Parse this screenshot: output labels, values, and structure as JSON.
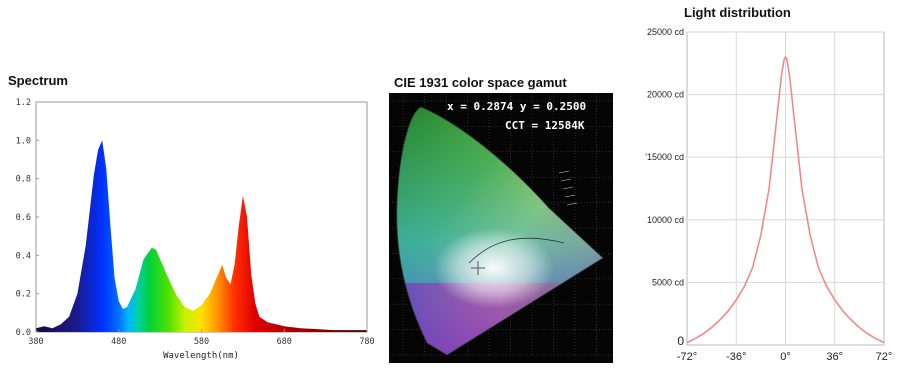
{
  "chart_data": [
    {
      "type": "area",
      "title": "Spectrum",
      "xlabel": "Wavelength(nm)",
      "ylabel": "",
      "xlim": [
        380,
        780
      ],
      "ylim": [
        0,
        1.2
      ],
      "xticks": [
        "380",
        "480",
        "580",
        "680",
        "780"
      ],
      "yticks": [
        "0.0",
        "0.2",
        "0.4",
        "0.6",
        "0.8",
        "1.0",
        "1.2"
      ],
      "series": [
        {
          "x": [
            380,
            390,
            400,
            410,
            420,
            430,
            440,
            450,
            455,
            460,
            465,
            470,
            475,
            480,
            485,
            490,
            500,
            510,
            520,
            525,
            530,
            540,
            550,
            560,
            570,
            580,
            590,
            600,
            605,
            610,
            615,
            620,
            625,
            630,
            635,
            640,
            645,
            650,
            660,
            670,
            680,
            700,
            720,
            740,
            760,
            780
          ],
          "values": [
            0.02,
            0.03,
            0.02,
            0.04,
            0.08,
            0.2,
            0.45,
            0.82,
            0.95,
            1.0,
            0.85,
            0.55,
            0.28,
            0.16,
            0.12,
            0.13,
            0.22,
            0.38,
            0.44,
            0.43,
            0.38,
            0.28,
            0.19,
            0.13,
            0.11,
            0.14,
            0.2,
            0.3,
            0.35,
            0.28,
            0.25,
            0.35,
            0.55,
            0.71,
            0.6,
            0.3,
            0.15,
            0.08,
            0.05,
            0.04,
            0.03,
            0.02,
            0.015,
            0.01,
            0.01,
            0.01
          ]
        }
      ],
      "grid": false,
      "legend": "none"
    },
    {
      "type": "scatter",
      "title": "CIE 1931 color space  gamut",
      "annotations": [
        "x = 0.2874  y = 0.2500",
        "CCT = 12584K"
      ],
      "series": [
        {
          "x": [
            0.2874
          ],
          "values": [
            0.25
          ]
        }
      ],
      "grid": true,
      "legend": "none"
    },
    {
      "type": "line",
      "title": "Light distribution",
      "xlabel": "",
      "ylabel": "",
      "xlim": [
        -72,
        72
      ],
      "ylim": [
        0,
        25000
      ],
      "xticks": [
        "-72°",
        "-36°",
        "0°",
        "36°",
        "72°"
      ],
      "yticks": [
        "0",
        "5000 cd",
        "10000 cd",
        "'15000 cd",
        "20000 cd",
        "25000 cd"
      ],
      "series": [
        {
          "x": [
            -72,
            -66,
            -60,
            -54,
            -48,
            -42,
            -36,
            -30,
            -24,
            -18,
            -12,
            -8,
            -5,
            -3,
            -1,
            0,
            1,
            3,
            5,
            8,
            12,
            18,
            24,
            30,
            36,
            42,
            48,
            54,
            60,
            66,
            72
          ],
          "values": [
            200,
            500,
            900,
            1400,
            2000,
            2700,
            3600,
            4700,
            6200,
            8800,
            12500,
            16500,
            19500,
            21500,
            22800,
            23000,
            22800,
            21500,
            19500,
            16500,
            12500,
            8800,
            6200,
            4700,
            3600,
            2700,
            2000,
            1400,
            900,
            500,
            200
          ]
        }
      ],
      "grid": true,
      "legend": "none",
      "line_color": "#f08a8a"
    }
  ]
}
